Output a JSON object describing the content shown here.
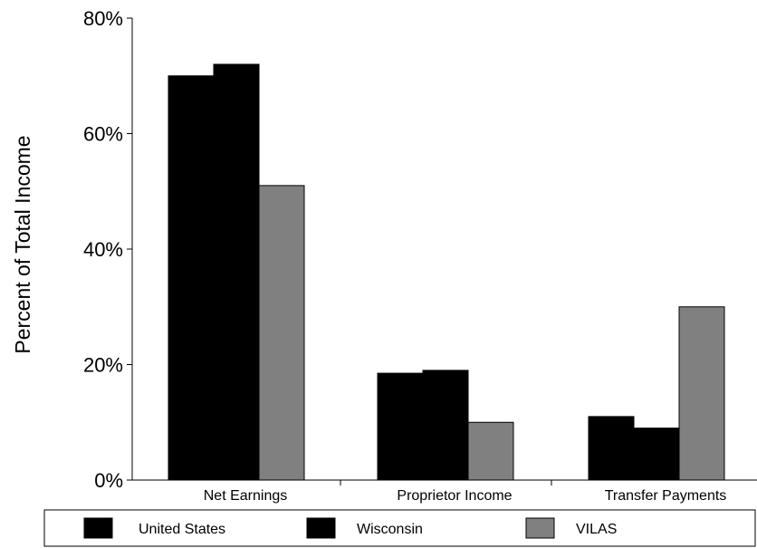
{
  "chart_data": {
    "type": "bar",
    "title": "",
    "xlabel": "",
    "ylabel": "Percent of Total Income",
    "ylim": [
      0,
      80
    ],
    "y_ticks": [
      "0%",
      "20%",
      "40%",
      "60%",
      "80%"
    ],
    "y_tick_values": [
      0,
      20,
      40,
      60,
      80
    ],
    "categories": [
      "Net Earnings",
      "Proprietor Income",
      "Transfer Payments"
    ],
    "series": [
      {
        "name": "United States",
        "color": "#000000",
        "values": [
          70,
          18.5,
          11
        ]
      },
      {
        "name": "Wisconsin",
        "color": "#000000",
        "values": [
          72,
          19,
          9
        ]
      },
      {
        "name": "VILAS",
        "color": "#808080",
        "values": [
          51,
          10,
          30
        ]
      }
    ],
    "grid": false,
    "legend_position": "bottom"
  }
}
